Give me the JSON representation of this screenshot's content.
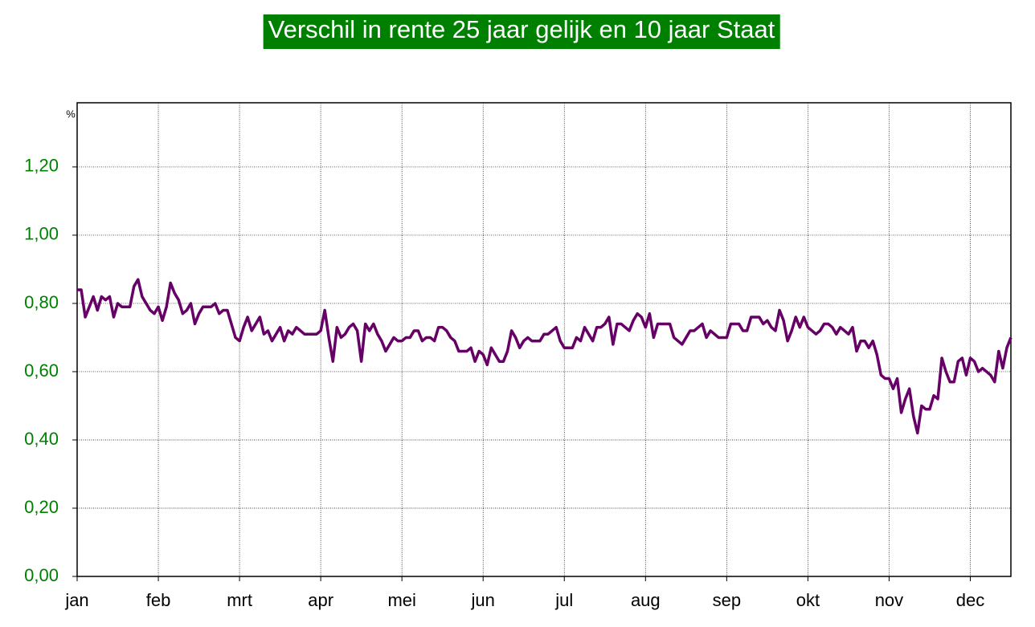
{
  "chart_data": {
    "type": "line",
    "title": "Verschil in rente 25 jaar gelijk en 10 jaar Staat",
    "ylabel": "%",
    "categories": [
      "jan",
      null,
      null,
      null,
      null,
      null,
      null,
      null,
      null,
      null,
      null,
      null,
      null,
      null,
      null,
      null,
      null,
      null,
      null,
      null,
      "feb",
      null,
      null,
      null,
      null,
      null,
      null,
      null,
      null,
      null,
      null,
      null,
      null,
      null,
      null,
      null,
      null,
      null,
      null,
      null,
      "mrt",
      null,
      null,
      null,
      null,
      null,
      null,
      null,
      null,
      null,
      null,
      null,
      null,
      null,
      null,
      null,
      null,
      null,
      null,
      null,
      "apr",
      null,
      null,
      null,
      null,
      null,
      null,
      null,
      null,
      null,
      null,
      null,
      null,
      null,
      null,
      null,
      null,
      null,
      null,
      null,
      "mei",
      null,
      null,
      null,
      null,
      null,
      null,
      null,
      null,
      null,
      null,
      null,
      null,
      null,
      null,
      null,
      null,
      null,
      null,
      null,
      "jun",
      null,
      null,
      null,
      null,
      null,
      null,
      null,
      null,
      null,
      null,
      null,
      null,
      null,
      null,
      null,
      null,
      null,
      null,
      null,
      "jul",
      null,
      null,
      null,
      null,
      null,
      null,
      null,
      null,
      null,
      null,
      null,
      null,
      null,
      null,
      null,
      null,
      null,
      null,
      null,
      "aug",
      null,
      null,
      null,
      null,
      null,
      null,
      null,
      null,
      null,
      null,
      null,
      null,
      null,
      null,
      null,
      null,
      null,
      null,
      null,
      "sep",
      null,
      null,
      null,
      null,
      null,
      null,
      null,
      null,
      null,
      null,
      null,
      null,
      null,
      null,
      null,
      null,
      null,
      null,
      null,
      "okt",
      null,
      null,
      null,
      null,
      null,
      null,
      null,
      null,
      null,
      null,
      null,
      null,
      null,
      null,
      null,
      null,
      null,
      null,
      null,
      "nov",
      null,
      null,
      null,
      null,
      null,
      null,
      null,
      null,
      null,
      null,
      null,
      null,
      null,
      null,
      null,
      null,
      null,
      null,
      null,
      "dec",
      null,
      null,
      null,
      null,
      null,
      null,
      null,
      null,
      null,
      null
    ],
    "series": [
      {
        "color": "#660066",
        "values": [
          0.84,
          0.84,
          0.76,
          0.79,
          0.82,
          0.78,
          0.82,
          0.81,
          0.82,
          0.76,
          0.8,
          0.79,
          0.79,
          0.79,
          0.85,
          0.87,
          0.82,
          0.8,
          0.78,
          0.77,
          0.79,
          0.75,
          0.79,
          0.86,
          0.83,
          0.81,
          0.77,
          0.78,
          0.8,
          0.74,
          0.77,
          0.79,
          0.79,
          0.79,
          0.8,
          0.77,
          0.78,
          0.78,
          0.74,
          0.7,
          0.69,
          0.73,
          0.76,
          0.72,
          0.74,
          0.76,
          0.71,
          0.72,
          0.69,
          0.71,
          0.73,
          0.69,
          0.72,
          0.71,
          0.73,
          0.72,
          0.71,
          0.71,
          0.71,
          0.71,
          0.72,
          0.78,
          0.7,
          0.63,
          0.73,
          0.7,
          0.71,
          0.73,
          0.74,
          0.72,
          0.63,
          0.74,
          0.72,
          0.74,
          0.71,
          0.69,
          0.66,
          0.68,
          0.7,
          0.69,
          0.69,
          0.7,
          0.7,
          0.72,
          0.72,
          0.69,
          0.7,
          0.7,
          0.69,
          0.73,
          0.73,
          0.72,
          0.7,
          0.69,
          0.66,
          0.66,
          0.66,
          0.67,
          0.63,
          0.66,
          0.65,
          0.62,
          0.67,
          0.65,
          0.63,
          0.63,
          0.66,
          0.72,
          0.7,
          0.67,
          0.69,
          0.7,
          0.69,
          0.69,
          0.69,
          0.71,
          0.71,
          0.72,
          0.73,
          0.69,
          0.67,
          0.67,
          0.67,
          0.7,
          0.69,
          0.73,
          0.71,
          0.69,
          0.73,
          0.73,
          0.74,
          0.76,
          0.68,
          0.74,
          0.74,
          0.73,
          0.72,
          0.75,
          0.77,
          0.76,
          0.73,
          0.77,
          0.7,
          0.74,
          0.74,
          0.74,
          0.74,
          0.7,
          0.69,
          0.68,
          0.7,
          0.72,
          0.72,
          0.73,
          0.74,
          0.7,
          0.72,
          0.71,
          0.7,
          0.7,
          0.7,
          0.74,
          0.74,
          0.74,
          0.72,
          0.72,
          0.76,
          0.76,
          0.76,
          0.74,
          0.75,
          0.73,
          0.72,
          0.78,
          0.75,
          0.69,
          0.72,
          0.76,
          0.73,
          0.76,
          0.73,
          0.72,
          0.71,
          0.72,
          0.74,
          0.74,
          0.73,
          0.71,
          0.73,
          0.72,
          0.71,
          0.73,
          0.66,
          0.69,
          0.69,
          0.67,
          0.69,
          0.65,
          0.59,
          0.58,
          0.58,
          0.55,
          0.58,
          0.48,
          0.52,
          0.55,
          0.47,
          0.42,
          0.5,
          0.49,
          0.49,
          0.53,
          0.52,
          0.64,
          0.6,
          0.57,
          0.57,
          0.63,
          0.64,
          0.59,
          0.64,
          0.63,
          0.6,
          0.61,
          0.6,
          0.59,
          0.57,
          0.66,
          0.61,
          0.67,
          0.7
        ]
      }
    ],
    "ylim": [
      0,
      1.388
    ],
    "yticks": [
      {
        "value": 0,
        "label": "0,00"
      },
      {
        "value": 0.2,
        "label": "0,20"
      },
      {
        "value": 0.4,
        "label": "0,40"
      },
      {
        "value": 0.6,
        "label": "0,60"
      },
      {
        "value": 0.8,
        "label": "0,80"
      },
      {
        "value": 1.0,
        "label": "1,00"
      },
      {
        "value": 1.2,
        "label": "1,20"
      }
    ],
    "grid": true,
    "title_background": "#008000",
    "tick_label_color": "#008000"
  }
}
